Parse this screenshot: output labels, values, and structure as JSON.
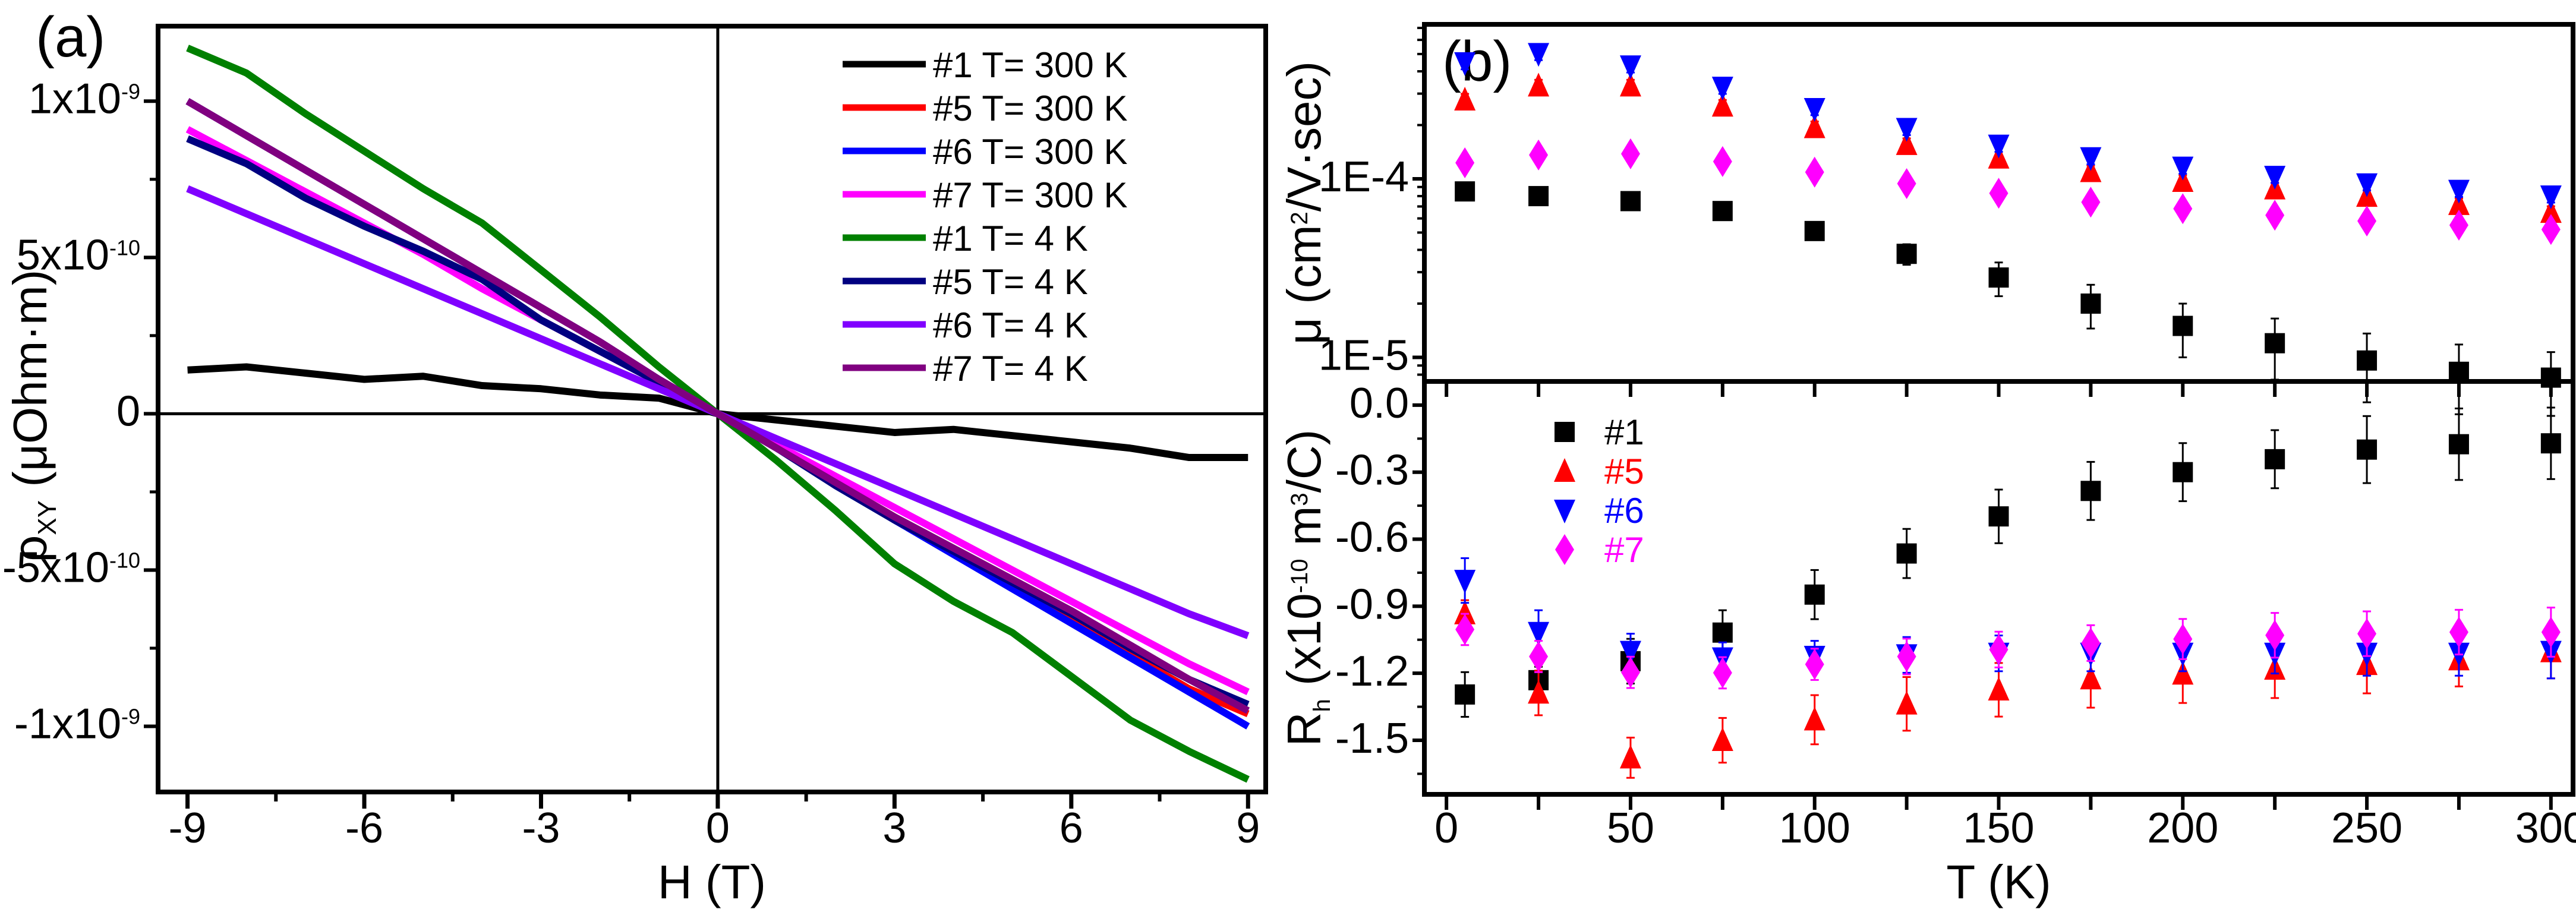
{
  "chart_data": [
    {
      "type": "line",
      "panel_label": "(a)",
      "xlabel": "H (T)",
      "ylabel": {
        "main": "ρ",
        "sub": "XY",
        "rest": " (μOhm·m)"
      },
      "xlim": [
        -9.5,
        9.3
      ],
      "ylim": [
        -1.21e-09,
        1.24e-09
      ],
      "xticks": [
        -9,
        -6,
        -3,
        0,
        3,
        6,
        9
      ],
      "xtick_labels": [
        "-9",
        "-6",
        "-3",
        "0",
        "3",
        "6",
        "9"
      ],
      "yticks": [
        1e-09,
        5e-10,
        0,
        -5e-10,
        -1e-09
      ],
      "ytick_labels": [
        {
          "base": "1x10",
          "exp": "-9"
        },
        {
          "base": "5x10",
          "exp": "-10"
        },
        {
          "base": "0",
          "exp": ""
        },
        {
          "base": "-5x10",
          "exp": "-10"
        },
        {
          "base": "-1x10",
          "exp": "-9"
        }
      ],
      "zero_lines": true,
      "legend_position": "top-right",
      "x": [
        -9,
        -8,
        -7,
        -6,
        -5,
        -4,
        -3,
        -2,
        -1,
        0,
        1,
        2,
        3,
        4,
        5,
        6,
        7,
        8,
        9
      ],
      "series": [
        {
          "name": "#1 T= 300 K",
          "color": "#000000",
          "values": [
            1.4e-10,
            1.5e-10,
            1.3e-10,
            1.1e-10,
            1.2e-10,
            9e-11,
            8e-11,
            6e-11,
            5e-11,
            0,
            -2e-11,
            -4e-11,
            -6e-11,
            -5e-11,
            -7e-11,
            -9e-11,
            -1.1e-10,
            -1.4e-10,
            -1.4e-10
          ]
        },
        {
          "name": "#5 T= 300 K",
          "color": "#ff0000",
          "values": [
            1e-09,
            8.9e-10,
            7.8e-10,
            6.7e-10,
            5.6e-10,
            4.5e-10,
            3.4e-10,
            2.3e-10,
            1.1e-10,
            0,
            -1.1e-10,
            -2.2e-10,
            -3.3e-10,
            -4.4e-10,
            -5.5e-10,
            -6.6e-10,
            -7.7e-10,
            -8.8e-10,
            -9.6e-10
          ]
        },
        {
          "name": "#6 T= 300 K",
          "color": "#0000ff",
          "values": [
            1e-09,
            8.9e-10,
            7.8e-10,
            6.7e-10,
            5.6e-10,
            4.5e-10,
            3.4e-10,
            2.3e-10,
            1.1e-10,
            0,
            -1.1e-10,
            -2.2e-10,
            -3.4e-10,
            -4.5e-10,
            -5.6e-10,
            -6.7e-10,
            -7.8e-10,
            -8.9e-10,
            -1e-09
          ]
        },
        {
          "name": "#7 T= 300 K",
          "color": "#ff00ff",
          "values": [
            9.1e-10,
            8.1e-10,
            7.1e-10,
            6.1e-10,
            5.1e-10,
            4e-10,
            3e-10,
            2e-10,
            1e-10,
            0,
            -1e-10,
            -2e-10,
            -3e-10,
            -4e-10,
            -5e-10,
            -6e-10,
            -7e-10,
            -8e-10,
            -8.9e-10
          ]
        },
        {
          "name": "#1 T= 4 K",
          "color": "#008000",
          "values": [
            1.17e-09,
            1.09e-09,
            9.6e-10,
            8.4e-10,
            7.2e-10,
            6.1e-10,
            4.6e-10,
            3.1e-10,
            1.5e-10,
            0,
            -1.5e-10,
            -3.1e-10,
            -4.8e-10,
            -6e-10,
            -7e-10,
            -8.4e-10,
            -9.8e-10,
            -1.08e-09,
            -1.17e-09
          ]
        },
        {
          "name": "#5 T= 4 K",
          "color": "#000080",
          "values": [
            8.8e-10,
            8e-10,
            6.9e-10,
            6e-10,
            5.2e-10,
            4.3e-10,
            3e-10,
            2e-10,
            1e-10,
            0,
            -1.1e-10,
            -2.3e-10,
            -3.4e-10,
            -4.4e-10,
            -5.4e-10,
            -6.4e-10,
            -7.5e-10,
            -8.5e-10,
            -9.3e-10
          ]
        },
        {
          "name": "#6 T= 4 K",
          "color": "#8000ff",
          "values": [
            7.2e-10,
            6.4e-10,
            5.6e-10,
            4.8e-10,
            4e-10,
            3.2e-10,
            2.4e-10,
            1.6e-10,
            8e-11,
            0,
            -8e-11,
            -1.6e-10,
            -2.4e-10,
            -3.2e-10,
            -4e-10,
            -4.8e-10,
            -5.6e-10,
            -6.4e-10,
            -7.1e-10
          ]
        },
        {
          "name": "#7 T= 4 K",
          "color": "#800080",
          "values": [
            1e-09,
            8.9e-10,
            7.8e-10,
            6.7e-10,
            5.6e-10,
            4.5e-10,
            3.4e-10,
            2.3e-10,
            1.1e-10,
            0,
            -1.1e-10,
            -2.2e-10,
            -3.3e-10,
            -4.3e-10,
            -5.3e-10,
            -6.3e-10,
            -7.4e-10,
            -8.5e-10,
            -9.5e-10
          ]
        }
      ]
    },
    {
      "type": "scatter",
      "panel_label": "(b)",
      "yscale": "log",
      "ylabel": {
        "main": "μ (cm",
        "sup": "2",
        "rest": "/V·sec)"
      },
      "xlim": [
        -6,
        306
      ],
      "ylim": [
        7.33e-06,
        0.000733
      ],
      "yticks": [
        0.0001,
        1e-05
      ],
      "ytick_labels": [
        "1E-4",
        "1E-5"
      ],
      "x": [
        5,
        25,
        50,
        75,
        100,
        125,
        150,
        175,
        200,
        225,
        250,
        275,
        300
      ],
      "series": [
        {
          "name": "#1",
          "marker": "square",
          "color": "#000000",
          "values": [
            8.5e-05,
            8e-05,
            7.5e-05,
            6.6e-05,
            5.1e-05,
            3.8e-05,
            2.8e-05,
            2e-05,
            1.5e-05,
            1.2e-05,
            9.6e-06,
            8.3e-06,
            7.7e-06
          ],
          "err": [
            2e-06,
            2e-06,
            2e-06,
            3e-06,
            4e-06,
            5e-06,
            6e-06,
            5.5e-06,
            5e-06,
            4.5e-06,
            4e-06,
            3.5e-06,
            3e-06
          ]
        },
        {
          "name": "#5",
          "marker": "triangle-up",
          "color": "#ff0000",
          "values": [
            0.000277,
            0.000332,
            0.000332,
            0.000256,
            0.000194,
            0.000156,
            0.000131,
            0.00011,
            9.7e-05,
            8.8e-05,
            8e-05,
            7.2e-05,
            6.5e-05
          ],
          "err_rel": 0.08
        },
        {
          "name": "#6",
          "marker": "triangle-down",
          "color": "#0000ff",
          "values": [
            0.000446,
            0.000502,
            0.000428,
            0.000325,
            0.000247,
            0.000191,
            0.000154,
            0.000131,
            0.000116,
            0.000103,
            9.35e-05,
            8.6e-05,
            8e-05
          ],
          "err_rel": 0.08
        },
        {
          "name": "#7",
          "marker": "diamond",
          "color": "#ff00ff",
          "values": [
            0.000123,
            0.000136,
            0.000138,
            0.000125,
            0.000109,
            9.4e-05,
            8.3e-05,
            7.4e-05,
            6.8e-05,
            6.25e-05,
            5.8e-05,
            5.5e-05,
            5.2e-05
          ],
          "err_rel": 0.03
        }
      ]
    },
    {
      "type": "scatter",
      "xlabel": "T (K)",
      "ylabel": {
        "main": "R",
        "sub": "h",
        "rest": " (x10",
        "sup": "-10",
        "rest2": " m",
        "sup2": "3",
        "rest3": "/C)"
      },
      "xlim": [
        -6,
        306
      ],
      "ylim": [
        -1.742,
        0.106
      ],
      "xticks": [
        0,
        50,
        100,
        150,
        200,
        250,
        300
      ],
      "xtick_labels": [
        "0",
        "50",
        "100",
        "150",
        "200",
        "250",
        "300"
      ],
      "yticks": [
        0.0,
        -0.3,
        -0.6,
        -0.9,
        -1.2,
        -1.5
      ],
      "ytick_labels": [
        "0.0",
        "-0.3",
        "-0.6",
        "-0.9",
        "-1.2",
        "-1.5"
      ],
      "legend_position": "top-left",
      "x": [
        5,
        25,
        50,
        75,
        100,
        125,
        150,
        175,
        200,
        225,
        250,
        275,
        300
      ],
      "series": [
        {
          "name": "#1",
          "marker": "square",
          "color": "#000000",
          "values": [
            -1.295,
            -1.231,
            -1.146,
            -1.018,
            -0.848,
            -0.664,
            -0.498,
            -0.384,
            -0.3,
            -0.242,
            -0.199,
            -0.175,
            -0.171
          ],
          "err": [
            0.1,
            0.06,
            0.1,
            0.1,
            0.11,
            0.11,
            0.12,
            0.13,
            0.13,
            0.13,
            0.15,
            0.16,
            0.16
          ]
        },
        {
          "name": "#5",
          "marker": "triangle-up",
          "color": "#ff0000",
          "values": [
            -0.933,
            -1.288,
            -1.578,
            -1.5,
            -1.408,
            -1.337,
            -1.274,
            -1.224,
            -1.203,
            -1.181,
            -1.16,
            -1.139,
            -1.103
          ],
          "err": [
            0.06,
            0.1,
            0.09,
            0.1,
            0.11,
            0.12,
            0.12,
            0.13,
            0.13,
            0.13,
            0.13,
            0.12,
            0.12
          ]
        },
        {
          "name": "#6",
          "marker": "triangle-down",
          "color": "#0000ff",
          "values": [
            -0.785,
            -1.018,
            -1.103,
            -1.132,
            -1.125,
            -1.118,
            -1.111,
            -1.111,
            -1.111,
            -1.111,
            -1.111,
            -1.111,
            -1.103
          ],
          "err": [
            0.1,
            0.1,
            0.08,
            0.07,
            0.07,
            0.08,
            0.08,
            0.08,
            0.08,
            0.09,
            0.1,
            0.1,
            0.12
          ]
        },
        {
          "name": "#7",
          "marker": "diamond",
          "color": "#ff00ff",
          "values": [
            -1.004,
            -1.125,
            -1.196,
            -1.198,
            -1.16,
            -1.125,
            -1.094,
            -1.065,
            -1.047,
            -1.03,
            -1.023,
            -1.016,
            -1.016
          ],
          "err": [
            0.07,
            0.07,
            0.07,
            0.07,
            0.07,
            0.08,
            0.08,
            0.08,
            0.09,
            0.1,
            0.1,
            0.1,
            0.11
          ]
        }
      ]
    }
  ]
}
